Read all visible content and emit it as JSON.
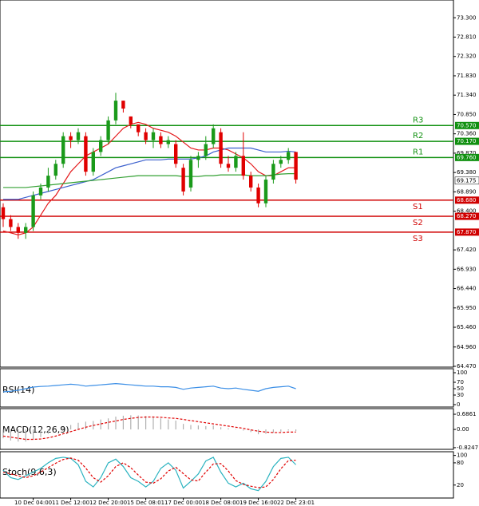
{
  "chart_data": [
    {
      "type": "candlestick",
      "categories": [
        null,
        null,
        null,
        null,
        "10 Dec 04:00",
        null,
        null,
        null,
        null,
        "11 Dec 12:00",
        null,
        null,
        null,
        null,
        "12 Dec 20:00",
        null,
        null,
        null,
        null,
        "15 Dec 08:01",
        null,
        null,
        null,
        null,
        "17 Dec 00:00",
        null,
        null,
        null,
        null,
        "18 Dec 08:00",
        null,
        null,
        null,
        null,
        "19 Dec 16:00",
        null,
        null,
        null,
        null,
        "22 Dec 23:01"
      ],
      "open": [
        68.5,
        68.2,
        68.0,
        67.85,
        68.0,
        68.8,
        69.0,
        69.3,
        69.6,
        70.3,
        70.2,
        70.3,
        69.4,
        69.9,
        70.2,
        70.7,
        71.2,
        70.8,
        70.6,
        70.4,
        70.2,
        70.3,
        70.1,
        70.1,
        69.5,
        69.0,
        69.7,
        69.8,
        70.1,
        70.4,
        69.6,
        69.5,
        69.8,
        69.3,
        69.0,
        68.6,
        69.2,
        69.6,
        69.7,
        69.9
      ],
      "high": [
        68.6,
        68.3,
        68.1,
        68.1,
        68.9,
        69.1,
        69.5,
        69.7,
        70.4,
        70.4,
        70.5,
        70.4,
        70.0,
        70.3,
        70.8,
        71.4,
        71.2,
        70.8,
        70.6,
        70.5,
        70.5,
        70.4,
        70.3,
        70.2,
        69.6,
        69.8,
        69.9,
        70.3,
        70.6,
        70.5,
        69.8,
        69.9,
        70.4,
        69.4,
        69.1,
        69.3,
        69.7,
        69.8,
        70.0,
        69.9
      ],
      "low": [
        68.0,
        67.9,
        67.7,
        67.7,
        67.9,
        68.7,
        68.9,
        69.2,
        69.5,
        70.0,
        70.1,
        69.3,
        69.3,
        69.8,
        70.1,
        70.6,
        70.9,
        70.5,
        70.3,
        70.1,
        70.0,
        70.0,
        70.0,
        69.5,
        68.8,
        68.9,
        69.5,
        69.7,
        70.0,
        69.5,
        69.4,
        69.4,
        69.2,
        68.9,
        68.5,
        68.5,
        69.1,
        69.5,
        69.6,
        69.1
      ],
      "close": [
        68.2,
        68.0,
        67.85,
        68.0,
        68.8,
        69.0,
        69.3,
        69.6,
        70.3,
        70.2,
        70.4,
        69.4,
        69.9,
        70.2,
        70.7,
        71.2,
        71.0,
        70.6,
        70.4,
        70.2,
        70.4,
        70.1,
        70.2,
        69.6,
        68.9,
        69.7,
        69.8,
        70.1,
        70.5,
        69.6,
        69.5,
        69.8,
        69.3,
        69.0,
        68.6,
        69.2,
        69.6,
        69.7,
        69.9,
        69.2
      ],
      "up_color": "#1a9a1a",
      "down_color": "#e00000",
      "series": [
        {
          "color": "#e41a1c",
          "values": [
            67.9,
            67.85,
            67.8,
            67.85,
            68.0,
            68.3,
            68.6,
            68.8,
            69.1,
            69.4,
            69.6,
            69.8,
            69.9,
            70.0,
            70.1,
            70.3,
            70.5,
            70.6,
            70.65,
            70.6,
            70.5,
            70.45,
            70.4,
            70.3,
            70.15,
            70.0,
            69.95,
            69.95,
            70.0,
            70.0,
            69.95,
            69.85,
            69.75,
            69.6,
            69.4,
            69.3,
            69.3,
            69.4,
            69.5,
            69.5
          ]
        },
        {
          "color": "#3a5fcd",
          "values": [
            68.7,
            68.7,
            68.7,
            68.75,
            68.8,
            68.85,
            68.9,
            68.95,
            69.0,
            69.05,
            69.1,
            69.15,
            69.2,
            69.3,
            69.4,
            69.5,
            69.55,
            69.6,
            69.65,
            69.7,
            69.7,
            69.7,
            69.72,
            69.72,
            69.72,
            69.72,
            69.75,
            69.8,
            69.9,
            69.95,
            70.0,
            70.0,
            70.0,
            70.0,
            69.95,
            69.9,
            69.9,
            69.9,
            69.92,
            69.9
          ]
        },
        {
          "color": "#33a033",
          "values": [
            69.0,
            69.0,
            69.0,
            69.0,
            69.02,
            69.04,
            69.06,
            69.08,
            69.1,
            69.12,
            69.14,
            69.16,
            69.18,
            69.2,
            69.22,
            69.24,
            69.26,
            69.28,
            69.3,
            69.3,
            69.3,
            69.3,
            69.3,
            69.3,
            69.28,
            69.28,
            69.28,
            69.3,
            69.3,
            69.32,
            69.32,
            69.32,
            69.32,
            69.3,
            69.3,
            69.3,
            69.32,
            69.34,
            69.35,
            69.35
          ]
        }
      ],
      "levels": [
        {
          "name": "R3",
          "value": 70.57,
          "value_label": "70.570",
          "color": "#109010"
        },
        {
          "name": "R2",
          "value": 70.17,
          "value_label": "70.170",
          "color": "#109010"
        },
        {
          "name": "R1",
          "value": 69.76,
          "value_label": "69.760",
          "color": "#109010"
        },
        {
          "name": "S1",
          "value": 68.68,
          "value_label": "68.680",
          "color": "#d00000"
        },
        {
          "name": "S2",
          "value": 68.27,
          "value_label": "68.270",
          "color": "#d00000"
        },
        {
          "name": "S3",
          "value": 67.87,
          "value_label": "67.870",
          "color": "#d00000"
        }
      ],
      "last": 69.175,
      "ylim": [
        64.45,
        73.75
      ],
      "yticks": [
        {
          "value": 73.3,
          "label": "73.300"
        },
        {
          "value": 72.81,
          "label": "72.810"
        },
        {
          "value": 72.32,
          "label": "72.320"
        },
        {
          "value": 71.83,
          "label": "71.830"
        },
        {
          "value": 71.34,
          "label": "71.340"
        },
        {
          "value": 70.85,
          "label": "70.850"
        },
        {
          "value": 70.36,
          "label": "70.360"
        },
        {
          "value": 69.87,
          "label": "69.870"
        },
        {
          "value": 69.38,
          "label": "69.380"
        },
        {
          "value": 68.89,
          "label": "68.890"
        },
        {
          "value": 68.4,
          "label": "68.400"
        },
        {
          "value": 67.42,
          "label": "67.420"
        },
        {
          "value": 66.93,
          "label": "66.930"
        },
        {
          "value": 66.44,
          "label": "66.440"
        },
        {
          "value": 65.95,
          "label": "65.950"
        },
        {
          "value": 65.46,
          "label": "65.460"
        },
        {
          "value": 64.96,
          "label": "64.960"
        },
        {
          "value": 64.47,
          "label": "64.470"
        }
      ]
    },
    {
      "type": "line",
      "title": "RSI(14)",
      "series": [
        {
          "color": "#3a8ee6",
          "values": [
            40,
            42,
            45,
            50,
            55,
            57,
            58,
            60,
            62,
            64,
            62,
            58,
            60,
            62,
            64,
            66,
            64,
            62,
            60,
            58,
            58,
            56,
            56,
            54,
            48,
            52,
            54,
            56,
            58,
            52,
            50,
            52,
            48,
            45,
            42,
            50,
            54,
            56,
            58,
            50
          ]
        }
      ],
      "ylim": [
        -7.5,
        112.5
      ],
      "yticks": [
        100,
        70,
        50,
        30,
        0
      ]
    },
    {
      "type": "bar",
      "title": "MACD(12,26,9)",
      "color": "#b0b0b0",
      "values": [
        -0.4,
        -0.5,
        -0.55,
        -0.55,
        -0.45,
        -0.35,
        -0.2,
        -0.05,
        0.1,
        0.2,
        0.3,
        0.35,
        0.38,
        0.45,
        0.5,
        0.58,
        0.62,
        0.64,
        0.63,
        0.6,
        0.56,
        0.5,
        0.45,
        0.4,
        0.25,
        0.2,
        0.18,
        0.15,
        0.18,
        0.1,
        0.05,
        0.02,
        -0.05,
        -0.12,
        -0.22,
        -0.2,
        -0.15,
        -0.1,
        -0.05,
        -0.08
      ],
      "series": [
        {
          "color": "#e00000",
          "dashed": true,
          "values": [
            -0.3,
            -0.35,
            -0.4,
            -0.45,
            -0.45,
            -0.43,
            -0.38,
            -0.3,
            -0.2,
            -0.1,
            0.0,
            0.1,
            0.18,
            0.25,
            0.32,
            0.38,
            0.45,
            0.5,
            0.54,
            0.56,
            0.56,
            0.55,
            0.52,
            0.5,
            0.45,
            0.4,
            0.35,
            0.3,
            0.25,
            0.2,
            0.15,
            0.1,
            0.05,
            -0.02,
            -0.08,
            -0.12,
            -0.14,
            -0.14,
            -0.12,
            -0.12
          ]
        }
      ],
      "ylim": [
        -0.9,
        0.94
      ],
      "yticks": [
        0.6861,
        {
          "value": 0,
          "label": "0.00"
        },
        -0.8247
      ]
    },
    {
      "type": "line",
      "title": "Stoch(9,6,3)",
      "series": [
        {
          "color": "#2bb3c0",
          "values": [
            60,
            40,
            35,
            45,
            55,
            65,
            80,
            92,
            95,
            92,
            75,
            30,
            15,
            40,
            80,
            90,
            70,
            40,
            30,
            15,
            30,
            65,
            80,
            60,
            12,
            30,
            50,
            85,
            95,
            55,
            25,
            15,
            25,
            10,
            5,
            30,
            70,
            92,
            95,
            75
          ]
        },
        {
          "color": "#e00000",
          "dashed": true,
          "values": [
            55,
            50,
            45,
            40,
            45,
            55,
            67,
            79,
            89,
            93,
            87,
            66,
            40,
            28,
            45,
            70,
            80,
            67,
            47,
            28,
            25,
            37,
            58,
            68,
            51,
            34,
            31,
            55,
            77,
            78,
            58,
            32,
            22,
            17,
            13,
            15,
            35,
            64,
            86,
            87
          ]
        }
      ],
      "ylim": [
        -15,
        110
      ],
      "yticks": [
        100,
        80,
        20
      ]
    }
  ]
}
